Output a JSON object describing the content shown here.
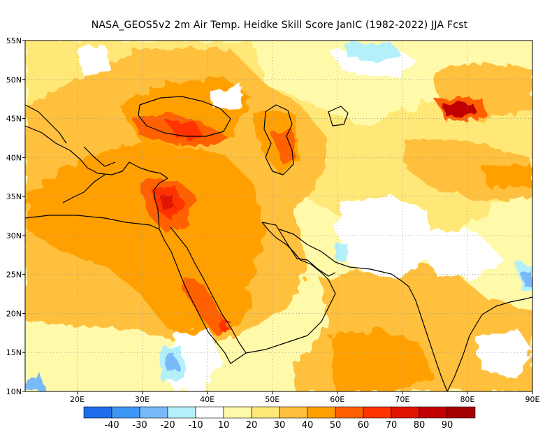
{
  "title": "NASA_GEOS5v2  2m Air Temp. Heidke Skill Score JanIC (1982-2022) JJA Fcst",
  "map": {
    "lon_range": [
      12,
      90
    ],
    "lat_range": [
      10,
      55
    ],
    "lon_ticks": [
      {
        "value": 20,
        "label": "20E"
      },
      {
        "value": 30,
        "label": "30E"
      },
      {
        "value": 40,
        "label": "40E"
      },
      {
        "value": 50,
        "label": "50E"
      },
      {
        "value": 60,
        "label": "60E"
      },
      {
        "value": 70,
        "label": "70E"
      },
      {
        "value": 80,
        "label": "80E"
      },
      {
        "value": 90,
        "label": "90E"
      }
    ],
    "lat_ticks": [
      {
        "value": 55,
        "label": "55N"
      },
      {
        "value": 50,
        "label": "50N"
      },
      {
        "value": 45,
        "label": "45N"
      },
      {
        "value": 40,
        "label": "40N"
      },
      {
        "value": 35,
        "label": "35N"
      },
      {
        "value": 30,
        "label": "30N"
      },
      {
        "value": 25,
        "label": "25N"
      },
      {
        "value": 20,
        "label": "20N"
      },
      {
        "value": 15,
        "label": "15N"
      },
      {
        "value": 10,
        "label": "10N"
      }
    ],
    "gridlines": "dotted"
  },
  "colorbar": {
    "bins": [
      {
        "color": "#1e6eeb"
      },
      {
        "color": "#3c96f5"
      },
      {
        "color": "#78b9fa"
      },
      {
        "color": "#b4f0fa"
      },
      {
        "color": "#ffffff"
      },
      {
        "color": "#fffaaa"
      },
      {
        "color": "#ffe878"
      },
      {
        "color": "#ffc03c"
      },
      {
        "color": "#ffa000"
      },
      {
        "color": "#ff6000"
      },
      {
        "color": "#ff3200"
      },
      {
        "color": "#e11400"
      },
      {
        "color": "#c00000"
      },
      {
        "color": "#a50000"
      }
    ],
    "labels": [
      "-40",
      "-30",
      "-20",
      "-10",
      "10",
      "20",
      "30",
      "40",
      "50",
      "60",
      "70",
      "80",
      "90"
    ]
  }
}
